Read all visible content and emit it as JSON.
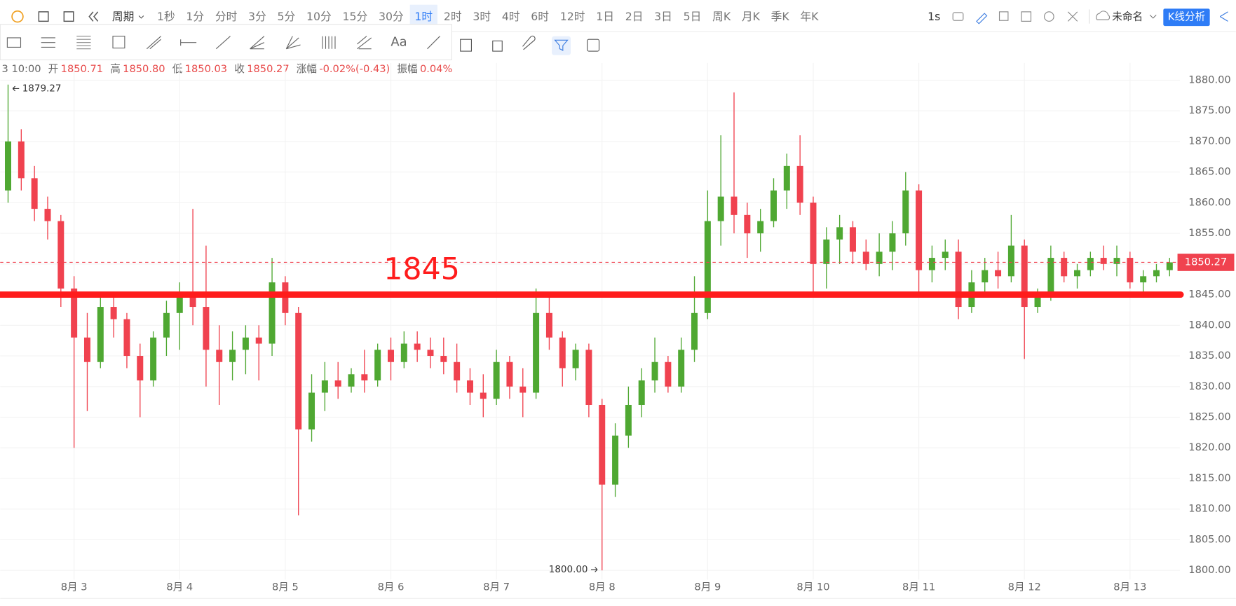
{
  "toolbar": {
    "period_menu": "周期",
    "periods": [
      "1秒",
      "1分",
      "分时",
      "3分",
      "5分",
      "10分",
      "15分",
      "30分",
      "1时",
      "2时",
      "3时",
      "4时",
      "6时",
      "12时",
      "1日",
      "2日",
      "3日",
      "5日",
      "周K",
      "月K",
      "季K",
      "年K"
    ],
    "active_period_index": 8,
    "interval": "1s",
    "layout_name": "未命名",
    "analysis_button": "K线分析",
    "text_tool": "Aa"
  },
  "info_bar": {
    "time": "3 10:00",
    "items": [
      {
        "label": "开",
        "value": "1850.71"
      },
      {
        "label": "高",
        "value": "1850.80"
      },
      {
        "label": "低",
        "value": "1850.03"
      },
      {
        "label": "收",
        "value": "1850.27"
      },
      {
        "label": "涨幅",
        "value": "-0.02%(-0.43)"
      },
      {
        "label": "振幅",
        "value": "0.04%"
      }
    ]
  },
  "chart_data": {
    "type": "candlestick",
    "up_color": "#4fa832",
    "down_color": "#f0424f",
    "grid": true,
    "categories": [
      null,
      null,
      null,
      null,
      null,
      "8月 3",
      null,
      null,
      null,
      null,
      null,
      null,
      null,
      "8月 4",
      null,
      null,
      null,
      null,
      null,
      null,
      null,
      "8月 5",
      null,
      null,
      null,
      null,
      null,
      null,
      null,
      "8月 6",
      null,
      null,
      null,
      null,
      null,
      null,
      null,
      "8月 7",
      null,
      null,
      null,
      null,
      null,
      null,
      null,
      "8月 8",
      null,
      null,
      null,
      null,
      null,
      null,
      null,
      "8月 9",
      null,
      null,
      null,
      null,
      null,
      null,
      null,
      "8月 10",
      null,
      null,
      null,
      null,
      null,
      null,
      null,
      "8月 11",
      null,
      null,
      null,
      null,
      null,
      null,
      null,
      "8月 12",
      null,
      null,
      null,
      null,
      null,
      null,
      null,
      "8月 13",
      null,
      null,
      null
    ],
    "open": [
      1862,
      1870,
      1864,
      1859,
      1857,
      1846,
      1838,
      1834,
      1843,
      1841,
      1835,
      1831,
      1838,
      1842,
      1845,
      1843,
      1836,
      1834,
      1836,
      1838,
      1837,
      1847,
      1842,
      1823,
      1829,
      1831,
      1830,
      1832,
      1831,
      1836,
      1834,
      1837,
      1836,
      1835,
      1834,
      1831,
      1829,
      1828,
      1834,
      1830,
      1829,
      1842,
      1838,
      1833,
      1836,
      1827,
      1814,
      1822,
      1827,
      1831,
      1834,
      1830,
      1836,
      1842,
      1857,
      1861,
      1858,
      1855,
      1857,
      1862,
      1866,
      1860,
      1850,
      1854,
      1856,
      1852,
      1850,
      1852,
      1855,
      1862,
      1849,
      1851,
      1852,
      1843,
      1847,
      1849,
      1848,
      1853,
      1843,
      1845,
      1851,
      1848,
      1849,
      1851,
      1850,
      1851,
      1847,
      1848,
      1849
    ],
    "high": [
      1879.27,
      1872,
      1866,
      1861,
      1858,
      1848,
      1842,
      1845,
      1845,
      1842,
      1837,
      1839,
      1844,
      1847,
      1859,
      1853,
      1840,
      1839,
      1840,
      1840,
      1851,
      1848,
      1843,
      1832,
      1834,
      1834,
      1833,
      1836,
      1837,
      1838,
      1839,
      1839,
      1838,
      1838,
      1837,
      1833,
      1832,
      1836,
      1835,
      1833,
      1846,
      1845,
      1839,
      1837,
      1837,
      1828,
      1824,
      1830,
      1833,
      1838,
      1835,
      1838,
      1848,
      1862,
      1871,
      1878,
      1860,
      1859,
      1864,
      1868,
      1871,
      1861,
      1856,
      1858,
      1857,
      1854,
      1855,
      1857,
      1865,
      1863,
      1853,
      1854,
      1854,
      1849,
      1851,
      1852,
      1858,
      1854,
      1846,
      1853,
      1852,
      1850,
      1852,
      1853,
      1853,
      1852,
      1849,
      1850,
      1851
    ],
    "low": [
      1860,
      1862,
      1857,
      1854,
      1843,
      1820,
      1826,
      1833,
      1838,
      1833,
      1825,
      1830,
      1835,
      1836,
      1840,
      1830,
      1827,
      1831,
      1832,
      1831,
      1835,
      1840,
      1809,
      1821,
      1826,
      1828,
      1829,
      1829,
      1830,
      1831,
      1833,
      1834,
      1833,
      1832,
      1829,
      1827,
      1825,
      1827,
      1828,
      1825,
      1828,
      1836,
      1830,
      1831,
      1825,
      1800,
      1812,
      1820,
      1825,
      1829,
      1829,
      1829,
      1834,
      1841,
      1853,
      1855,
      1851,
      1852,
      1856,
      1859,
      1858,
      1845,
      1846,
      1850,
      1850,
      1849,
      1848,
      1849,
      1853,
      1845,
      1847,
      1849,
      1841,
      1842,
      1845,
      1846,
      1847,
      1834.5,
      1842,
      1844,
      1847,
      1846,
      1848,
      1849,
      1848,
      1846,
      1845,
      1847,
      1848
    ],
    "close": [
      1870,
      1864,
      1859,
      1857,
      1846,
      1838,
      1834,
      1843,
      1841,
      1835,
      1831,
      1838,
      1842,
      1845,
      1843,
      1836,
      1834,
      1836,
      1838,
      1837,
      1847,
      1842,
      1823,
      1829,
      1831,
      1830,
      1832,
      1831,
      1836,
      1834,
      1837,
      1836,
      1835,
      1834,
      1831,
      1829,
      1828,
      1834,
      1830,
      1829,
      1842,
      1838,
      1833,
      1836,
      1827,
      1814,
      1822,
      1827,
      1831,
      1834,
      1830,
      1836,
      1842,
      1857,
      1861,
      1858,
      1855,
      1857,
      1862,
      1866,
      1860,
      1850,
      1854,
      1856,
      1852,
      1850,
      1852,
      1855,
      1862,
      1849,
      1851,
      1852,
      1843,
      1847,
      1849,
      1848,
      1853,
      1843,
      1845,
      1851,
      1848,
      1849,
      1851,
      1850,
      1851,
      1847,
      1848,
      1849,
      1850.27
    ],
    "ylim": [
      1798.5,
      1882.8
    ],
    "yticks": [
      {
        "value": 1800,
        "label": "1800.00"
      },
      {
        "value": 1805,
        "label": "1805.00"
      },
      {
        "value": 1810,
        "label": "1810.00"
      },
      {
        "value": 1815,
        "label": "1815.00"
      },
      {
        "value": 1820,
        "label": "1820.00"
      },
      {
        "value": 1825,
        "label": "1825.00"
      },
      {
        "value": 1830,
        "label": "1830.00"
      },
      {
        "value": 1835,
        "label": "1835.00"
      },
      {
        "value": 1840,
        "label": "1840.00"
      },
      {
        "value": 1845,
        "label": "1845.00"
      },
      {
        "value": 1850,
        "label": "1850.00"
      },
      {
        "value": 1855,
        "label": "1855.00"
      },
      {
        "value": 1860,
        "label": "1860.00"
      },
      {
        "value": 1865,
        "label": "1865.00"
      },
      {
        "value": 1870,
        "label": "1870.00"
      },
      {
        "value": 1875,
        "label": "1875.00"
      },
      {
        "value": 1880,
        "label": "1880.00"
      }
    ],
    "high_label": "1879.27",
    "low_label": "1800.00",
    "last_price_label": "1850.27",
    "hline": 1845,
    "hline_color": "#ff1c1c"
  }
}
